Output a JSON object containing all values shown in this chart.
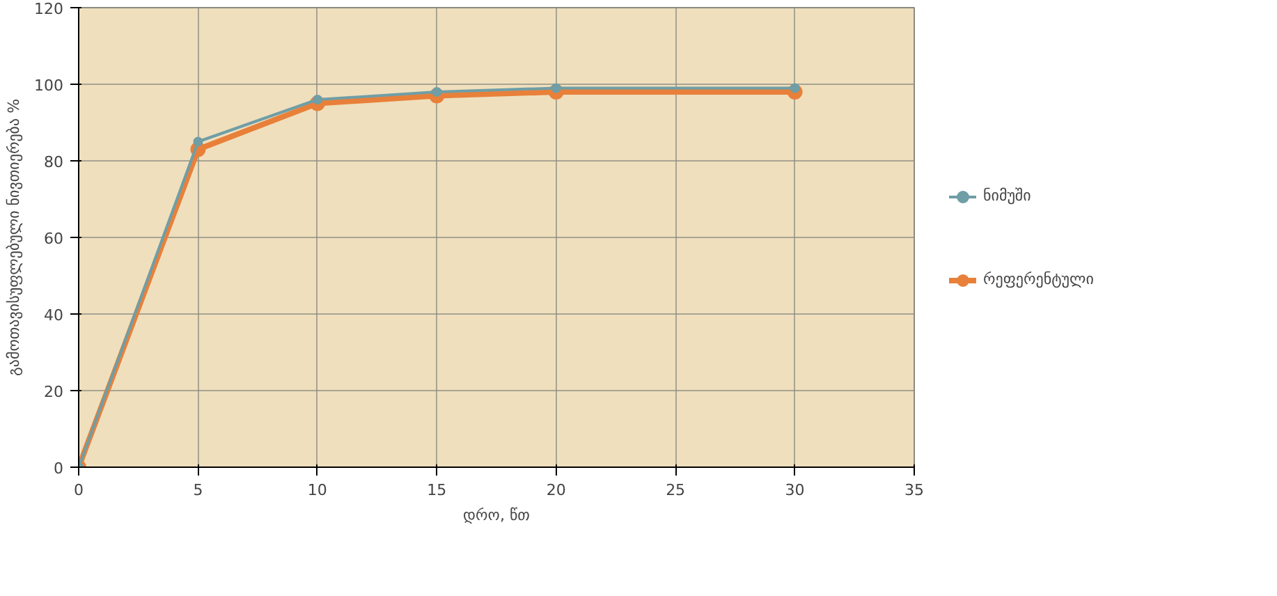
{
  "chart_data": {
    "type": "line",
    "xlabel": "დრო, წთ",
    "ylabel": "გამოთავისუფლებული ნივთიერება %",
    "x": [
      0,
      5,
      10,
      15,
      20,
      30
    ],
    "xlim": [
      0,
      35
    ],
    "xticks": [
      0,
      5,
      10,
      15,
      20,
      25,
      30,
      35
    ],
    "ylim": [
      0,
      120
    ],
    "yticks": [
      0,
      20,
      40,
      60,
      80,
      100,
      120
    ],
    "grid": true,
    "legend": "right",
    "marker": "circle",
    "line_style": "solid",
    "series": [
      {
        "name": "ნიმუში",
        "color": "#6f9ea6",
        "values": [
          0,
          85,
          96,
          98,
          99,
          99
        ]
      },
      {
        "name": "რეფერენტული",
        "color": "#e8803a",
        "values": [
          0,
          83,
          95,
          97,
          98,
          98
        ]
      }
    ]
  }
}
